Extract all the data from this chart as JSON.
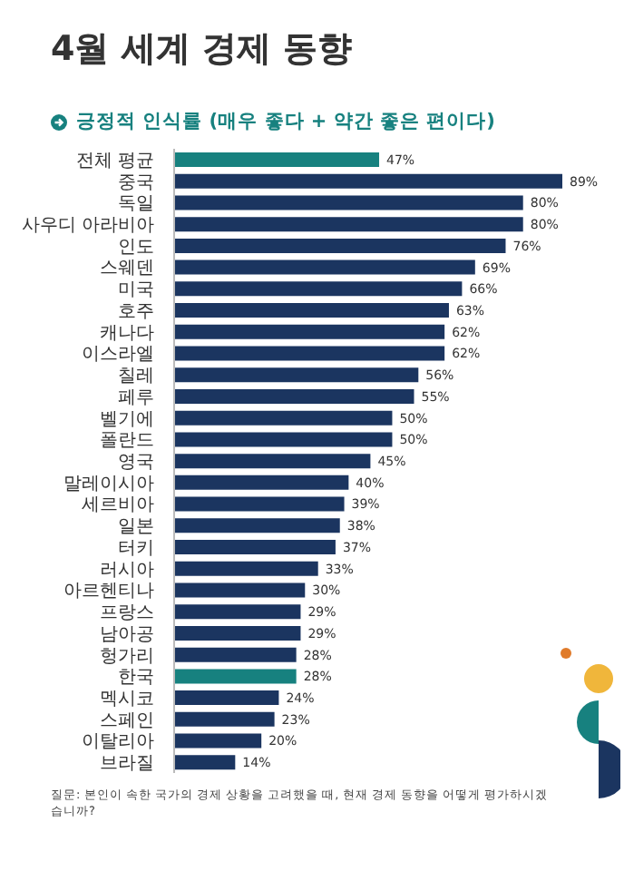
{
  "chart_data": {
    "type": "bar",
    "orientation": "horizontal",
    "title": "4월 세계 경제 동향",
    "subtitle": "긍정적 인식률 (매우 좋다 + 약간 좋은 편이다)",
    "categories": [
      "전체 평균",
      "중국",
      "독일",
      "사우디 아라비아",
      "인도",
      "스웨덴",
      "미국",
      "호주",
      "캐나다",
      "이스라엘",
      "칠레",
      "페루",
      "벨기에",
      "폴란드",
      "영국",
      "말레이시아",
      "세르비아",
      "일본",
      "터키",
      "러시아",
      "아르헨티나",
      "프랑스",
      "남아공",
      "헝가리",
      "한국",
      "멕시코",
      "스페인",
      "이탈리아",
      "브라질"
    ],
    "values": [
      47,
      89,
      80,
      80,
      76,
      69,
      66,
      63,
      62,
      62,
      56,
      55,
      50,
      50,
      45,
      40,
      39,
      38,
      37,
      33,
      30,
      29,
      29,
      28,
      28,
      24,
      23,
      20,
      14
    ],
    "value_labels": [
      "47%",
      "89%",
      "80%",
      "80%",
      "76%",
      "69%",
      "66%",
      "63%",
      "62%",
      "62%",
      "56%",
      "55%",
      "50%",
      "50%",
      "45%",
      "40%",
      "39%",
      "38%",
      "37%",
      "33%",
      "30%",
      "29%",
      "29%",
      "28%",
      "28%",
      "24%",
      "23%",
      "20%",
      "14%"
    ],
    "colors": [
      "#17817f",
      "#1b3560",
      "#1b3560",
      "#1b3560",
      "#1b3560",
      "#1b3560",
      "#1b3560",
      "#1b3560",
      "#1b3560",
      "#1b3560",
      "#1b3560",
      "#1b3560",
      "#1b3560",
      "#1b3560",
      "#1b3560",
      "#1b3560",
      "#1b3560",
      "#1b3560",
      "#1b3560",
      "#1b3560",
      "#1b3560",
      "#1b3560",
      "#1b3560",
      "#1b3560",
      "#17817f",
      "#1b3560",
      "#1b3560",
      "#1b3560",
      "#1b3560"
    ],
    "annotations": [
      "질문: 본인이 속한 국가의 경제 상황을 고려했을 때, 현재 경제 동향을 어떻게 평가하시겠습니까?"
    ],
    "grid": false,
    "legend": false
  }
}
